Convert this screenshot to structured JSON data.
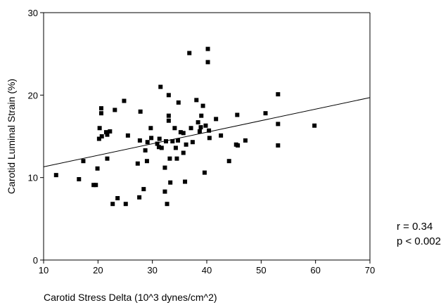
{
  "chart_data": {
    "type": "scatter",
    "title": "",
    "xlabel": "Carotid Stress Delta (10^3 dynes/cm^2)",
    "ylabel": "Carotid Luminal Strain (%)",
    "xlim": [
      10,
      70
    ],
    "ylim": [
      0,
      30
    ],
    "x_ticks": [
      10,
      20,
      30,
      40,
      50,
      60,
      70
    ],
    "y_ticks": [
      0,
      10,
      20,
      30
    ],
    "grid": false,
    "legend": "none",
    "marker_color": "#000000",
    "regression_line": {
      "x": [
        10,
        70
      ],
      "y": [
        11.3,
        19.7
      ]
    },
    "annotations": [
      "r = 0.34",
      "p < 0.002"
    ],
    "points": [
      {
        "x": 12.3,
        "y": 10.3
      },
      {
        "x": 16.5,
        "y": 9.8
      },
      {
        "x": 17.3,
        "y": 12.0
      },
      {
        "x": 19.2,
        "y": 9.1
      },
      {
        "x": 19.6,
        "y": 9.1
      },
      {
        "x": 19.9,
        "y": 11.1
      },
      {
        "x": 20.2,
        "y": 14.7
      },
      {
        "x": 20.3,
        "y": 16.0
      },
      {
        "x": 20.6,
        "y": 18.4
      },
      {
        "x": 20.6,
        "y": 17.8
      },
      {
        "x": 20.7,
        "y": 15.0
      },
      {
        "x": 21.5,
        "y": 15.5
      },
      {
        "x": 21.7,
        "y": 15.2
      },
      {
        "x": 21.7,
        "y": 12.3
      },
      {
        "x": 22.2,
        "y": 15.6
      },
      {
        "x": 22.7,
        "y": 6.8
      },
      {
        "x": 23.1,
        "y": 18.2
      },
      {
        "x": 23.6,
        "y": 7.5
      },
      {
        "x": 24.8,
        "y": 19.3
      },
      {
        "x": 25.1,
        "y": 6.8
      },
      {
        "x": 25.5,
        "y": 15.1
      },
      {
        "x": 27.3,
        "y": 11.7
      },
      {
        "x": 27.6,
        "y": 7.6
      },
      {
        "x": 27.7,
        "y": 14.5
      },
      {
        "x": 27.8,
        "y": 18.0
      },
      {
        "x": 28.4,
        "y": 8.6
      },
      {
        "x": 28.7,
        "y": 13.3
      },
      {
        "x": 29.0,
        "y": 12.0
      },
      {
        "x": 29.1,
        "y": 14.3
      },
      {
        "x": 29.7,
        "y": 16.0
      },
      {
        "x": 29.8,
        "y": 14.8
      },
      {
        "x": 30.9,
        "y": 14.1
      },
      {
        "x": 31.2,
        "y": 13.7
      },
      {
        "x": 31.3,
        "y": 14.7
      },
      {
        "x": 31.5,
        "y": 21.0
      },
      {
        "x": 31.7,
        "y": 13.6
      },
      {
        "x": 32.3,
        "y": 11.2
      },
      {
        "x": 32.3,
        "y": 8.3
      },
      {
        "x": 32.5,
        "y": 14.4
      },
      {
        "x": 32.7,
        "y": 6.8
      },
      {
        "x": 33.0,
        "y": 20.0
      },
      {
        "x": 33.0,
        "y": 17.5
      },
      {
        "x": 33.0,
        "y": 16.9
      },
      {
        "x": 33.2,
        "y": 12.3
      },
      {
        "x": 33.3,
        "y": 9.4
      },
      {
        "x": 33.7,
        "y": 14.4
      },
      {
        "x": 34.1,
        "y": 16.0
      },
      {
        "x": 34.3,
        "y": 13.6
      },
      {
        "x": 34.5,
        "y": 12.3
      },
      {
        "x": 34.7,
        "y": 14.5
      },
      {
        "x": 34.8,
        "y": 19.1
      },
      {
        "x": 35.2,
        "y": 15.5
      },
      {
        "x": 35.7,
        "y": 13.0
      },
      {
        "x": 35.7,
        "y": 15.4
      },
      {
        "x": 36.0,
        "y": 9.5
      },
      {
        "x": 36.2,
        "y": 14.0
      },
      {
        "x": 36.8,
        "y": 25.1
      },
      {
        "x": 37.1,
        "y": 16.0
      },
      {
        "x": 37.4,
        "y": 14.3
      },
      {
        "x": 38.1,
        "y": 19.4
      },
      {
        "x": 38.4,
        "y": 16.7
      },
      {
        "x": 38.7,
        "y": 15.6
      },
      {
        "x": 38.9,
        "y": 16.1
      },
      {
        "x": 39.0,
        "y": 17.5
      },
      {
        "x": 39.3,
        "y": 18.7
      },
      {
        "x": 39.6,
        "y": 10.6
      },
      {
        "x": 39.8,
        "y": 16.3
      },
      {
        "x": 40.2,
        "y": 25.6
      },
      {
        "x": 40.2,
        "y": 24.0
      },
      {
        "x": 40.4,
        "y": 15.7
      },
      {
        "x": 40.5,
        "y": 14.8
      },
      {
        "x": 41.7,
        "y": 17.1
      },
      {
        "x": 42.6,
        "y": 15.1
      },
      {
        "x": 44.1,
        "y": 12.0
      },
      {
        "x": 45.4,
        "y": 14.0
      },
      {
        "x": 45.6,
        "y": 17.6
      },
      {
        "x": 45.7,
        "y": 13.9
      },
      {
        "x": 47.1,
        "y": 14.5
      },
      {
        "x": 50.8,
        "y": 17.8
      },
      {
        "x": 53.1,
        "y": 20.1
      },
      {
        "x": 53.1,
        "y": 16.5
      },
      {
        "x": 53.1,
        "y": 13.9
      },
      {
        "x": 59.8,
        "y": 16.3
      }
    ]
  }
}
